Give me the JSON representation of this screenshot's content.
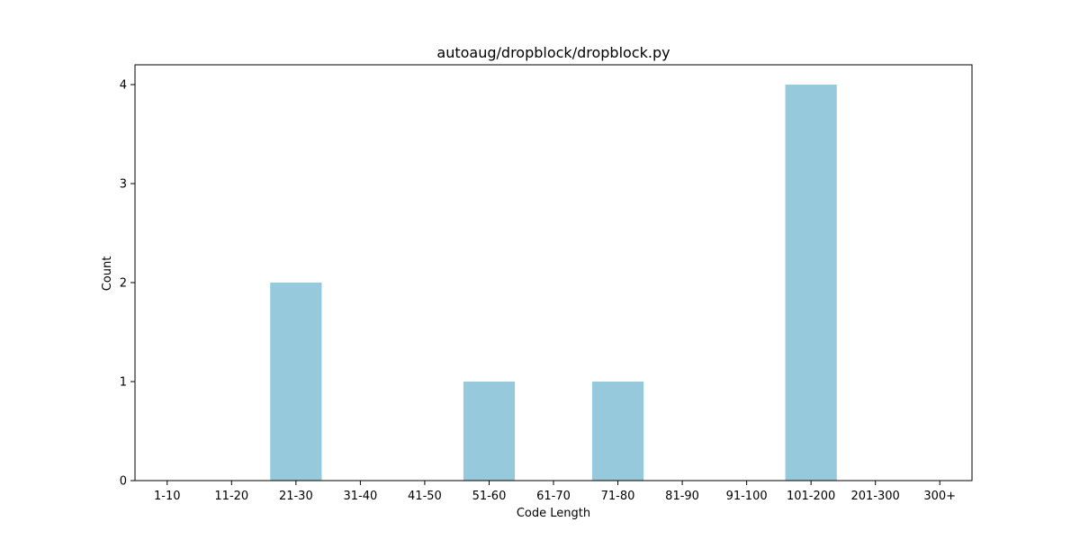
{
  "chart_data": {
    "type": "bar",
    "title": "autoaug/dropblock/dropblock.py",
    "xlabel": "Code Length",
    "ylabel": "Count",
    "categories": [
      "1-10",
      "11-20",
      "21-30",
      "31-40",
      "41-50",
      "51-60",
      "61-70",
      "71-80",
      "81-90",
      "91-100",
      "101-200",
      "201-300",
      "300+"
    ],
    "values": [
      0,
      0,
      2,
      0,
      0,
      1,
      0,
      1,
      0,
      0,
      4,
      0,
      0
    ],
    "ylim": [
      0,
      4.2
    ],
    "yticks": [
      0,
      1,
      2,
      3,
      4
    ],
    "bar_color": "#96c9dc",
    "grid": false,
    "legend": "none"
  }
}
